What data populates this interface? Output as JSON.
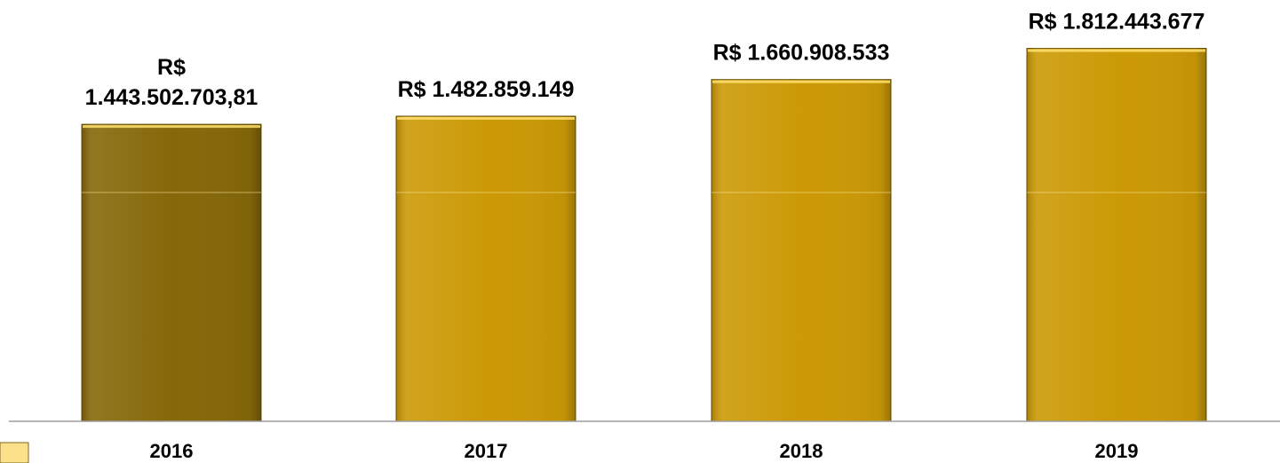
{
  "chart_data": {
    "type": "bar",
    "categories": [
      "2016",
      "2017",
      "2018",
      "2019"
    ],
    "values": [
      1443502703.81,
      1482859149,
      1660908533,
      1812443677
    ],
    "data_labels": [
      [
        "R$",
        "1.443.502.703,81"
      ],
      [
        "R$ 1.482.859.149"
      ],
      [
        "R$ 1.660.908.533"
      ],
      [
        "R$ 1.812.443.677"
      ]
    ],
    "bar_colors": [
      "#866809",
      "#cc9a06",
      "#cc9a06",
      "#cc9a06"
    ],
    "ylim": [
      0,
      2000000000
    ],
    "title": "",
    "xlabel": "",
    "ylabel": "",
    "grid": false,
    "legend": "none"
  },
  "colors": {
    "axis": "#9e9e9e",
    "highlight_bar": "#866809",
    "bar": "#cc9a06",
    "legend_swatch": "#fde08a"
  }
}
